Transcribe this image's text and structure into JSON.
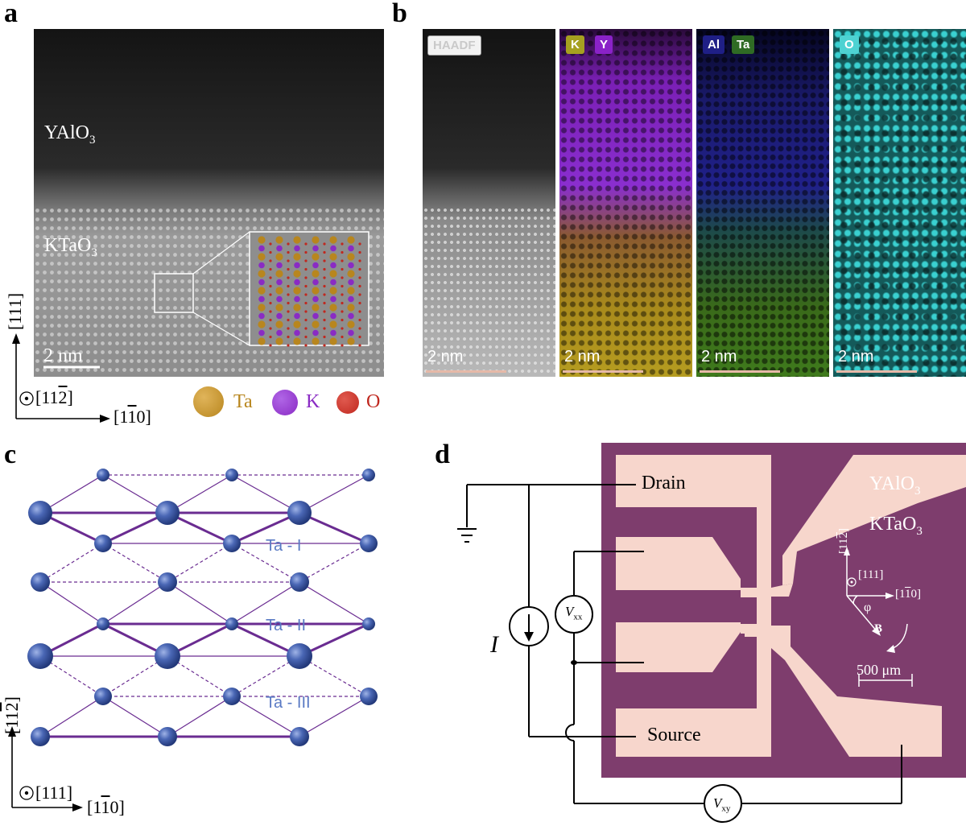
{
  "panels": {
    "a": {
      "label": "a",
      "top_layer": "YAlO",
      "top_layer_sub": "3",
      "bottom_layer": "KTaO",
      "bottom_layer_sub": "3",
      "scalebar": "2 nm",
      "axis_vertical": "[111]",
      "axis_out_of_plane": "[11",
      "axis_out_of_plane_bar": "2",
      "axis_horizontal_pre": "[1",
      "axis_horizontal_bar": "1",
      "axis_horizontal_post": "0]",
      "legend": [
        {
          "name": "Ta",
          "color": "#b8861e"
        },
        {
          "name": "K",
          "color": "#8a2bc4"
        },
        {
          "name": "O",
          "color": "#c0281f"
        }
      ]
    },
    "b": {
      "label": "b",
      "maps": [
        {
          "tags": [
            "HAADF"
          ],
          "scalebar": "2 nm"
        },
        {
          "tags": [
            "K",
            "Y"
          ],
          "scalebar": "2 nm"
        },
        {
          "tags": [
            "Al",
            "Ta"
          ],
          "scalebar": "2 nm"
        },
        {
          "tags": [
            "O"
          ],
          "scalebar": "2 nm"
        }
      ]
    },
    "c": {
      "label": "c",
      "sites": [
        "Ta - I",
        "Ta - II",
        "Ta - III"
      ],
      "axis_vertical_pre": "[11",
      "axis_vertical_bar": "2",
      "axis_out_of_plane": "[111]",
      "axis_horizontal_pre": "[1",
      "axis_horizontal_bar": "1",
      "axis_horizontal_post": "0]"
    },
    "d": {
      "label": "d",
      "drain": "Drain",
      "source": "Source",
      "current": "I",
      "vxx": "V",
      "vxx_sub": "xx",
      "vxy": "V",
      "vxy_sub": "xy",
      "top_layer": "YAlO",
      "top_layer_sub": "3",
      "bottom_layer": "KTaO",
      "bottom_layer_sub": "3",
      "dir_up_pre": "[11",
      "dir_up_bar": "2",
      "dir_out": "[111]",
      "dir_right_pre": "[1",
      "dir_right_bar": "1",
      "dir_right_post": "0]",
      "angle": "φ",
      "field": "B",
      "scalebar": "500 μm"
    }
  },
  "colors": {
    "device_bg": "#7e3d6d",
    "electrode": "#f7d6cc",
    "lattice_atom": "#3b5aa6",
    "lattice_bond": "#6a2c91"
  }
}
